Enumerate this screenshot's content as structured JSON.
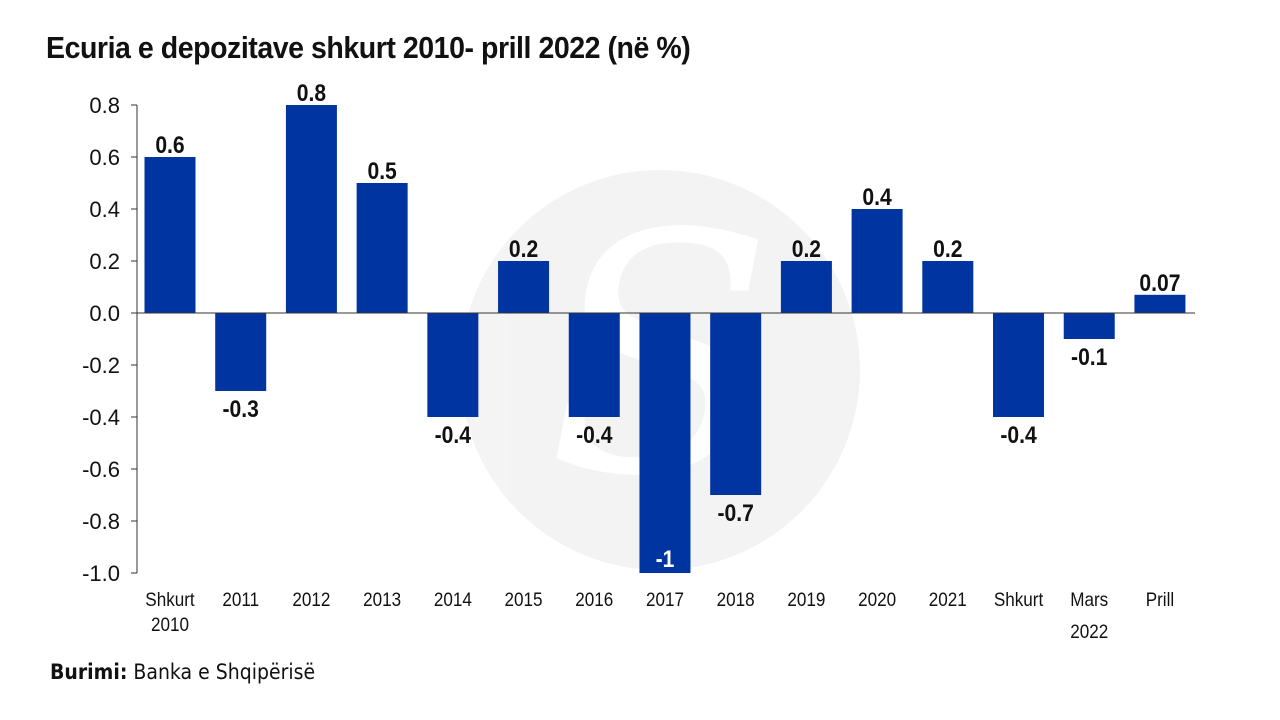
{
  "title": "Ecuria e depozitave shkurt 2010- prill 2022 (në %)",
  "source": {
    "label": "Burimi:",
    "text": " Banka e Shqipërisë"
  },
  "chart_data": {
    "type": "bar",
    "title": "Ecuria e depozitave shkurt 2010- prill 2022 (në %)",
    "xlabel": "",
    "ylabel": "",
    "ylim": [
      -1.0,
      0.8
    ],
    "yticks": [
      "0.8",
      "0.6",
      "0.4",
      "0.2",
      "0.0",
      "-0.2",
      "-0.4",
      "-0.6",
      "-0.8",
      "-1.0"
    ],
    "ytick_values": [
      0.8,
      0.6,
      0.4,
      0.2,
      0.0,
      -0.2,
      -0.4,
      -0.6,
      -0.8,
      -1.0
    ],
    "categories": [
      [
        "Shkurt",
        "2010"
      ],
      [
        "2011"
      ],
      [
        "2012"
      ],
      [
        "2013"
      ],
      [
        "2014"
      ],
      [
        "2015"
      ],
      [
        "2016"
      ],
      [
        "2017"
      ],
      [
        "2018"
      ],
      [
        "2019"
      ],
      [
        "2020"
      ],
      [
        "2021"
      ],
      [
        "Shkurt"
      ],
      [
        "Mars"
      ],
      [
        "Prill"
      ]
    ],
    "group_label": "2022",
    "values": [
      0.6,
      -0.3,
      0.8,
      0.5,
      -0.4,
      0.2,
      -0.4,
      -1,
      -0.7,
      0.2,
      0.4,
      0.2,
      -0.4,
      -0.1,
      0.07
    ],
    "data_labels": [
      "0.6",
      "-0.3",
      "0.8",
      "0.5",
      "-0.4",
      "0.2",
      "-0.4",
      "-1",
      "-0.7",
      "0.2",
      "0.4",
      "0.2",
      "-0.4",
      "-0.1",
      "0.07"
    ],
    "bar_color": "#0034a0",
    "grid": false
  }
}
